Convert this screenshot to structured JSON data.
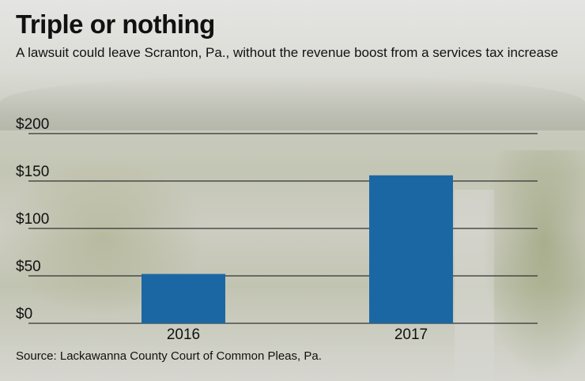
{
  "title": "Triple or nothing",
  "subtitle": "A lawsuit could leave Scranton, Pa., without the revenue boost from a services tax increase",
  "source": "Source: Lackawanna County Court of Common Pleas, Pa.",
  "colors": {
    "bar": "#1b67a3",
    "grid": "#333333"
  },
  "chart_data": {
    "type": "bar",
    "title": "Triple or nothing",
    "categories": [
      "2016",
      "2017"
    ],
    "values": [
      52,
      156
    ],
    "ylim": [
      0,
      200
    ],
    "yticks": [
      0,
      50,
      100,
      150,
      200
    ],
    "ytick_labels": [
      "$0",
      "$50",
      "$100",
      "$150",
      "$200"
    ],
    "xlabel": "",
    "ylabel": "",
    "grid": true
  }
}
